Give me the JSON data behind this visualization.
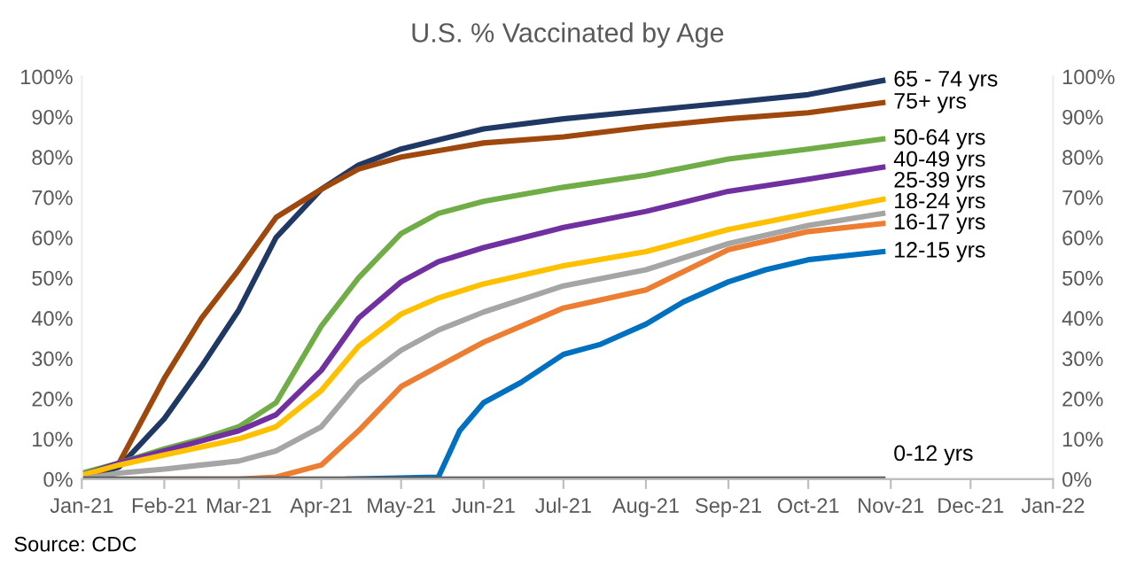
{
  "chart_data": {
    "type": "line",
    "title": "U.S. % Vaccinated by Age",
    "xlim": [
      "2021-01-01",
      "2022-01-01"
    ],
    "xticks": [
      {
        "value": "2021-01-01",
        "label": "Jan-21"
      },
      {
        "value": "2021-02-01",
        "label": "Feb-21"
      },
      {
        "value": "2021-03-01",
        "label": "Mar-21"
      },
      {
        "value": "2021-04-01",
        "label": "Apr-21"
      },
      {
        "value": "2021-05-01",
        "label": "May-21"
      },
      {
        "value": "2021-06-01",
        "label": "Jun-21"
      },
      {
        "value": "2021-07-01",
        "label": "Jul-21"
      },
      {
        "value": "2021-08-01",
        "label": "Aug-21"
      },
      {
        "value": "2021-09-01",
        "label": "Sep-21"
      },
      {
        "value": "2021-10-01",
        "label": "Oct-21"
      },
      {
        "value": "2021-11-01",
        "label": "Nov-21"
      },
      {
        "value": "2021-12-01",
        "label": "Dec-21"
      },
      {
        "value": "2022-01-01",
        "label": "Jan-22"
      }
    ],
    "ylim": [
      0,
      100
    ],
    "yticks": [
      {
        "value": 0,
        "label": "0%"
      },
      {
        "value": 10,
        "label": "10%"
      },
      {
        "value": 20,
        "label": "20%"
      },
      {
        "value": 30,
        "label": "30%"
      },
      {
        "value": 40,
        "label": "40%"
      },
      {
        "value": 50,
        "label": "50%"
      },
      {
        "value": 60,
        "label": "60%"
      },
      {
        "value": 70,
        "label": "70%"
      },
      {
        "value": 80,
        "label": "80%"
      },
      {
        "value": 90,
        "label": "90%"
      },
      {
        "value": 100,
        "label": "100%"
      }
    ],
    "y2lim": [
      0,
      100
    ],
    "y2ticks": [
      {
        "value": 0,
        "label": "0%"
      },
      {
        "value": 10,
        "label": "10%"
      },
      {
        "value": 20,
        "label": "20%"
      },
      {
        "value": 30,
        "label": "30%"
      },
      {
        "value": 40,
        "label": "40%"
      },
      {
        "value": 50,
        "label": "50%"
      },
      {
        "value": 60,
        "label": "60%"
      },
      {
        "value": 70,
        "label": "70%"
      },
      {
        "value": 80,
        "label": "80%"
      },
      {
        "value": 90,
        "label": "90%"
      },
      {
        "value": 100,
        "label": "100%"
      }
    ],
    "grid": false,
    "legend": false,
    "marker": "none",
    "line_style": "solid",
    "annotations": [
      "Source: CDC"
    ],
    "series": [
      {
        "name": "65 - 74 yrs",
        "color": "#203864",
        "x": [
          "2021-01-01",
          "2021-01-15",
          "2021-02-01",
          "2021-02-15",
          "2021-03-01",
          "2021-03-15",
          "2021-04-01",
          "2021-04-15",
          "2021-05-01",
          "2021-06-01",
          "2021-07-01",
          "2021-08-01",
          "2021-09-01",
          "2021-10-01",
          "2021-10-29"
        ],
        "values": [
          0,
          3,
          15,
          28,
          42,
          60,
          72,
          78,
          82,
          87,
          89.5,
          91.5,
          93.5,
          95.5,
          99
        ]
      },
      {
        "name": "75+ yrs",
        "color": "#9e480e",
        "x": [
          "2021-01-01",
          "2021-01-15",
          "2021-02-01",
          "2021-02-15",
          "2021-03-01",
          "2021-03-15",
          "2021-04-01",
          "2021-04-15",
          "2021-05-01",
          "2021-06-01",
          "2021-07-01",
          "2021-08-01",
          "2021-09-01",
          "2021-10-01",
          "2021-10-29"
        ],
        "values": [
          0,
          4,
          25,
          40,
          52,
          65,
          72,
          77,
          80,
          83.5,
          85,
          87.5,
          89.5,
          91,
          93.5
        ]
      },
      {
        "name": "50-64 yrs",
        "color": "#70ad47",
        "x": [
          "2021-01-01",
          "2021-01-15",
          "2021-02-01",
          "2021-02-15",
          "2021-03-01",
          "2021-03-15",
          "2021-04-01",
          "2021-04-15",
          "2021-05-01",
          "2021-05-15",
          "2021-06-01",
          "2021-07-01",
          "2021-08-01",
          "2021-09-01",
          "2021-10-01",
          "2021-10-29"
        ],
        "values": [
          1.5,
          4,
          7.5,
          10,
          13,
          19,
          38,
          50,
          61,
          66,
          69,
          72.5,
          75.5,
          79.5,
          82,
          84.5
        ]
      },
      {
        "name": "40-49 yrs",
        "color": "#7030a0",
        "x": [
          "2021-01-01",
          "2021-01-15",
          "2021-02-01",
          "2021-02-15",
          "2021-03-01",
          "2021-03-15",
          "2021-04-01",
          "2021-04-15",
          "2021-05-01",
          "2021-05-15",
          "2021-06-01",
          "2021-07-01",
          "2021-08-01",
          "2021-09-01",
          "2021-10-01",
          "2021-10-29"
        ],
        "values": [
          1,
          4,
          7,
          9.5,
          12,
          16,
          27,
          40,
          49,
          54,
          57.5,
          62.5,
          66.5,
          71.5,
          74.5,
          77.5
        ]
      },
      {
        "name": "25-39 yrs",
        "color": "#ffc000",
        "x": [
          "2021-01-01",
          "2021-01-15",
          "2021-02-01",
          "2021-02-15",
          "2021-03-01",
          "2021-03-15",
          "2021-04-01",
          "2021-04-15",
          "2021-05-01",
          "2021-05-15",
          "2021-06-01",
          "2021-07-01",
          "2021-08-01",
          "2021-09-01",
          "2021-10-01",
          "2021-10-29"
        ],
        "values": [
          1,
          3.5,
          6,
          8,
          10,
          13,
          22,
          33,
          41,
          45,
          48.5,
          53,
          56.5,
          62,
          66,
          69.5
        ]
      },
      {
        "name": "18-24 yrs",
        "color": "#a5a5a5",
        "x": [
          "2021-01-01",
          "2021-01-15",
          "2021-02-01",
          "2021-02-15",
          "2021-03-01",
          "2021-03-15",
          "2021-04-01",
          "2021-04-15",
          "2021-05-01",
          "2021-05-15",
          "2021-06-01",
          "2021-07-01",
          "2021-08-01",
          "2021-09-01",
          "2021-10-01",
          "2021-10-29"
        ],
        "values": [
          0,
          1.5,
          2.5,
          3.5,
          4.5,
          7,
          13,
          24,
          32,
          37,
          41.5,
          48,
          52,
          58.5,
          63,
          66
        ]
      },
      {
        "name": "16-17 yrs",
        "color": "#ed7d31",
        "x": [
          "2021-01-25",
          "2021-03-01",
          "2021-03-15",
          "2021-04-01",
          "2021-04-15",
          "2021-05-01",
          "2021-05-15",
          "2021-06-01",
          "2021-07-01",
          "2021-08-01",
          "2021-09-01",
          "2021-10-01",
          "2021-10-29"
        ],
        "values": [
          0,
          0,
          0.5,
          3.5,
          12,
          23,
          28,
          34,
          42.5,
          47,
          57,
          61.5,
          63.5
        ]
      },
      {
        "name": "12-15 yrs",
        "color": "#0070c0",
        "x": [
          "2021-04-11",
          "2021-05-15",
          "2021-05-23",
          "2021-06-01",
          "2021-06-15",
          "2021-07-01",
          "2021-07-15",
          "2021-08-01",
          "2021-08-15",
          "2021-09-01",
          "2021-09-15",
          "2021-10-01",
          "2021-10-29"
        ],
        "values": [
          0,
          0.5,
          12,
          19,
          24,
          31,
          33.5,
          38.5,
          44,
          49,
          52,
          54.5,
          56.5
        ]
      },
      {
        "name": "0-12 yrs",
        "color": "#595959",
        "x": [
          "2021-01-01",
          "2021-10-29"
        ],
        "values": [
          0,
          0
        ]
      }
    ]
  }
}
